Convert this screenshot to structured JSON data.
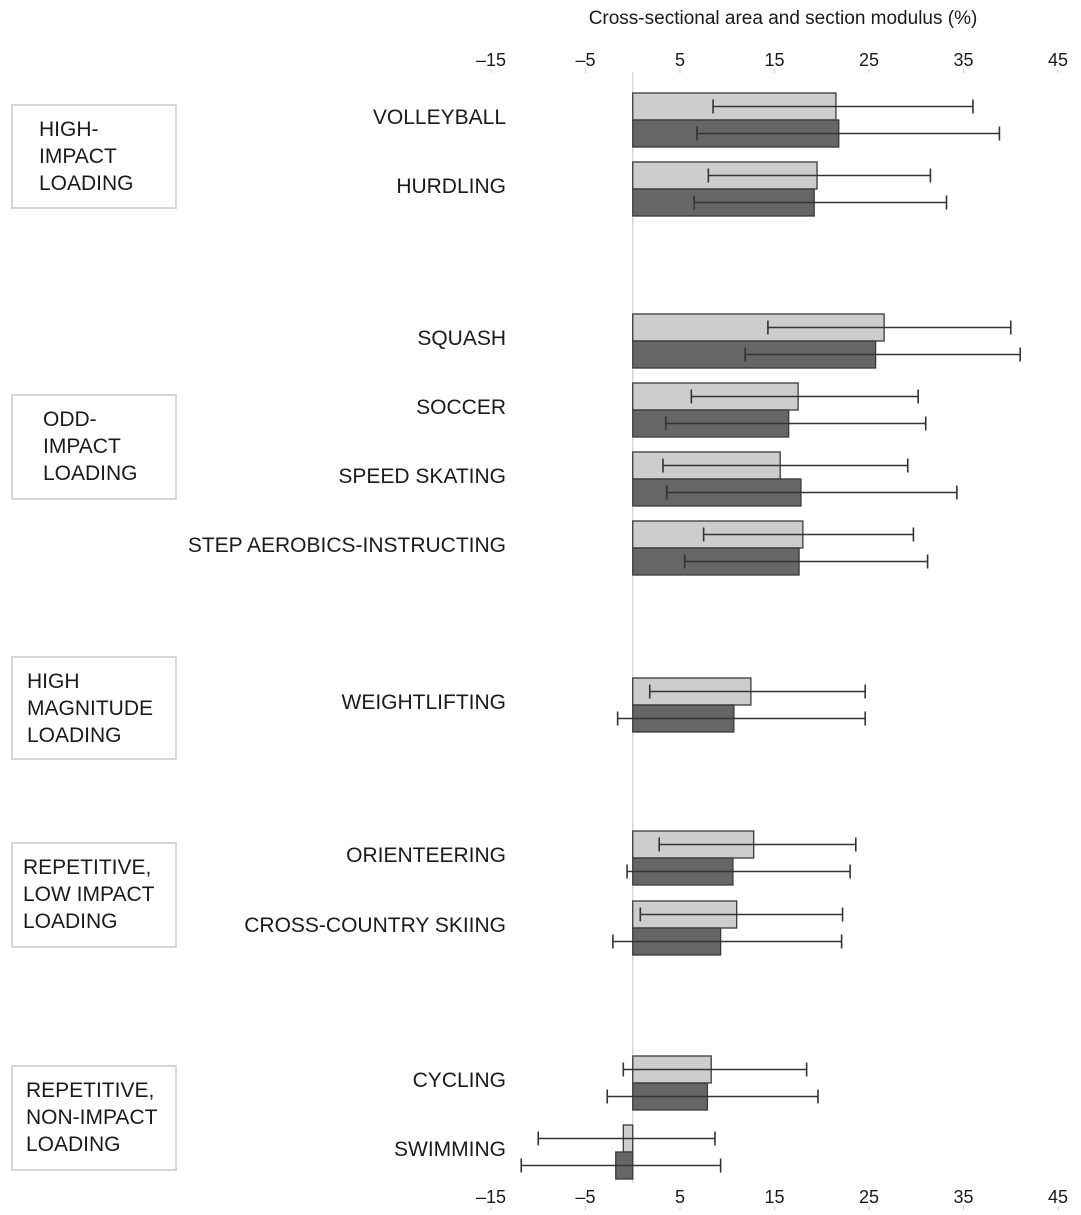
{
  "chart_data": {
    "type": "bar",
    "orientation": "horizontal",
    "title": "Cross-sectional area and section modulus (%)",
    "xlim": [
      -15,
      45
    ],
    "ticks": [
      -15,
      -5,
      5,
      15,
      25,
      35,
      45
    ],
    "tick_labels": [
      "–15",
      "–5",
      "5",
      "15",
      "25",
      "35",
      "45"
    ],
    "zero_reference_line": true,
    "grid": false,
    "legend": "none",
    "series_colors": [
      "#cdcdcd",
      "#666666"
    ],
    "groups": [
      {
        "label_lines": [
          "HIGH-",
          "IMPACT",
          "LOADING"
        ],
        "categories": [
          {
            "name": "VOLLEYBALL",
            "bars": [
              {
                "value": 21.5,
                "err_low": 8.5,
                "err_high": 36
              },
              {
                "value": 21.8,
                "err_low": 6.8,
                "err_high": 38.8
              }
            ]
          },
          {
            "name": "HURDLING",
            "bars": [
              {
                "value": 19.5,
                "err_low": 8,
                "err_high": 31.5
              },
              {
                "value": 19.2,
                "err_low": 6.5,
                "err_high": 33.2
              }
            ]
          }
        ]
      },
      {
        "label_lines": [
          "ODD-",
          "IMPACT",
          "LOADING"
        ],
        "categories": [
          {
            "name": "SQUASH",
            "bars": [
              {
                "value": 26.6,
                "err_low": 14.3,
                "err_high": 40
              },
              {
                "value": 25.7,
                "err_low": 11.9,
                "err_high": 41
              }
            ]
          },
          {
            "name": "SOCCER",
            "bars": [
              {
                "value": 17.5,
                "err_low": 6.2,
                "err_high": 30.2
              },
              {
                "value": 16.5,
                "err_low": 3.5,
                "err_high": 31
              }
            ]
          },
          {
            "name": "SPEED SKATING",
            "bars": [
              {
                "value": 15.6,
                "err_low": 3.2,
                "err_high": 29.1
              },
              {
                "value": 17.8,
                "err_low": 3.6,
                "err_high": 34.3
              }
            ]
          },
          {
            "name": "STEP AEROBICS-INSTRUCTING",
            "bars": [
              {
                "value": 18.0,
                "err_low": 7.5,
                "err_high": 29.7
              },
              {
                "value": 17.6,
                "err_low": 5.5,
                "err_high": 31.2
              }
            ]
          }
        ]
      },
      {
        "label_lines": [
          "HIGH",
          "MAGNITUDE",
          "LOADING"
        ],
        "categories": [
          {
            "name": "WEIGHTLIFTING",
            "bars": [
              {
                "value": 12.5,
                "err_low": 1.8,
                "err_high": 24.6
              },
              {
                "value": 10.7,
                "err_low": -1.6,
                "err_high": 24.6
              }
            ]
          }
        ]
      },
      {
        "label_lines": [
          "REPETITIVE,",
          "LOW IMPACT",
          "LOADING"
        ],
        "categories": [
          {
            "name": "ORIENTEERING",
            "bars": [
              {
                "value": 12.8,
                "err_low": 2.8,
                "err_high": 23.6
              },
              {
                "value": 10.6,
                "err_low": -0.6,
                "err_high": 23.0
              }
            ]
          },
          {
            "name": "CROSS-COUNTRY SKIING",
            "bars": [
              {
                "value": 11.0,
                "err_low": 0.8,
                "err_high": 22.2
              },
              {
                "value": 9.3,
                "err_low": -2.1,
                "err_high": 22.1
              }
            ]
          }
        ]
      },
      {
        "label_lines": [
          "REPETITIVE,",
          "NON-IMPACT",
          "LOADING"
        ],
        "categories": [
          {
            "name": "CYCLING",
            "bars": [
              {
                "value": 8.3,
                "err_low": -1.0,
                "err_high": 18.4
              },
              {
                "value": 7.9,
                "err_low": -2.7,
                "err_high": 19.6
              }
            ]
          },
          {
            "name": "SWIMMING",
            "bars": [
              {
                "value": -1.0,
                "err_low": -10.0,
                "err_high": 8.7
              },
              {
                "value": -1.8,
                "err_low": -11.8,
                "err_high": 9.3
              }
            ]
          }
        ]
      }
    ]
  }
}
